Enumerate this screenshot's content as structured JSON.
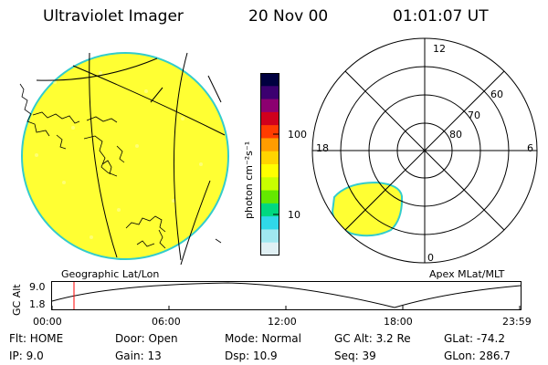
{
  "header": {
    "instrument": "Ultraviolet Imager",
    "date": "20 Nov 00",
    "time": "01:01:07 UT"
  },
  "colorbar": {
    "label": "photon cm⁻²s⁻¹",
    "tick_labels": [
      "100",
      "10"
    ],
    "tick_values": [
      100,
      10
    ],
    "colors": [
      "#000040",
      "#3c0070",
      "#8c0070",
      "#d0001c",
      "#ff3c00",
      "#ff9c00",
      "#ffd400",
      "#ffff00",
      "#c8ff00",
      "#64e800",
      "#00d880",
      "#30d8e8",
      "#a0e8f0",
      "#e0f0f4"
    ]
  },
  "geo_panel": {
    "label": "Geographic Lat/Lon",
    "fill_color": "#ffff33",
    "edge_color": "#33cccc"
  },
  "polar_panel": {
    "label": "Apex MLat/MLT",
    "mlt_labels": [
      "12",
      "18",
      "6",
      "0"
    ],
    "mlat_labels": [
      "60",
      "70",
      "80"
    ],
    "fill_color": "#ffff33"
  },
  "altitude_plot": {
    "ylabel": "GC Alt",
    "ytick_labels": [
      "9.0",
      "1.8"
    ],
    "xtick_labels": [
      "00:00",
      "06:00",
      "12:00",
      "18:00",
      "23:59"
    ],
    "marker_color": "#ff0000"
  },
  "info": {
    "col1": [
      "Flt: HOME",
      "IP:  9.0"
    ],
    "col2": [
      "Door: Open",
      "Gain: 13"
    ],
    "col3": [
      "Mode: Normal",
      "Dsp:   10.9"
    ],
    "col4": [
      "GC Alt: 3.2 Re",
      "Seq: 39"
    ],
    "col5": [
      "GLat: -74.2",
      "GLon: 286.7"
    ]
  }
}
